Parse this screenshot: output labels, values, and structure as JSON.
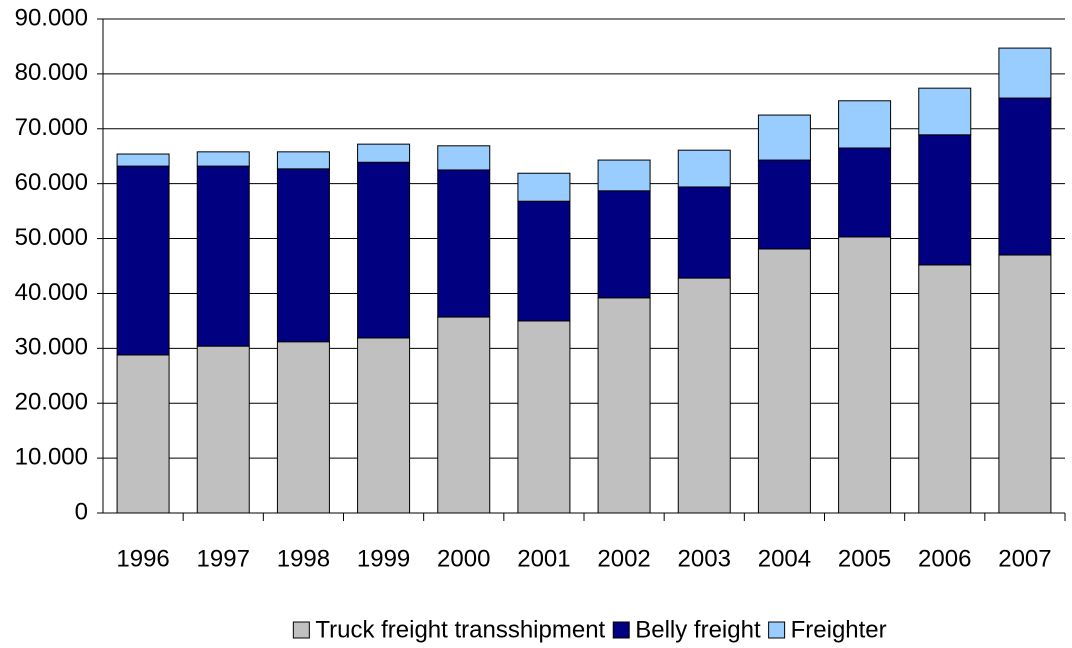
{
  "chart_data": {
    "type": "stacked_bar",
    "categories": [
      "1996",
      "1997",
      "1998",
      "1999",
      "2000",
      "2001",
      "2002",
      "2003",
      "2004",
      "2005",
      "2006",
      "2007"
    ],
    "series": [
      {
        "name": "Truck freight transshipment",
        "color": "#c0c0c0",
        "values": [
          28800,
          30400,
          31200,
          31900,
          35700,
          35000,
          39200,
          42800,
          48100,
          50300,
          45200,
          47000
        ]
      },
      {
        "name": "Belly freight",
        "color": "#000080",
        "values": [
          34400,
          32800,
          31500,
          32000,
          26800,
          21800,
          19500,
          16600,
          16200,
          16200,
          23700,
          28600
        ]
      },
      {
        "name": "Freighter",
        "color": "#99ccff",
        "values": [
          2200,
          2600,
          3100,
          3300,
          4400,
          5100,
          5600,
          6700,
          8200,
          8600,
          8500,
          9100
        ]
      }
    ],
    "ylim": [
      0,
      90000
    ],
    "yticks": [
      0,
      {
        "value": 10000,
        "label": "10.000"
      },
      {
        "value": 20000,
        "label": "20.000"
      },
      {
        "value": 30000,
        "label": "30.000"
      },
      {
        "value": 40000,
        "label": "40.000"
      },
      {
        "value": 50000,
        "label": "50.000"
      },
      {
        "value": 60000,
        "label": "60.000"
      },
      {
        "value": 70000,
        "label": "70.000"
      },
      {
        "value": 80000,
        "label": "80.000"
      },
      {
        "value": 90000,
        "label": "90.000"
      }
    ],
    "grid": true,
    "legend": "bottom"
  }
}
